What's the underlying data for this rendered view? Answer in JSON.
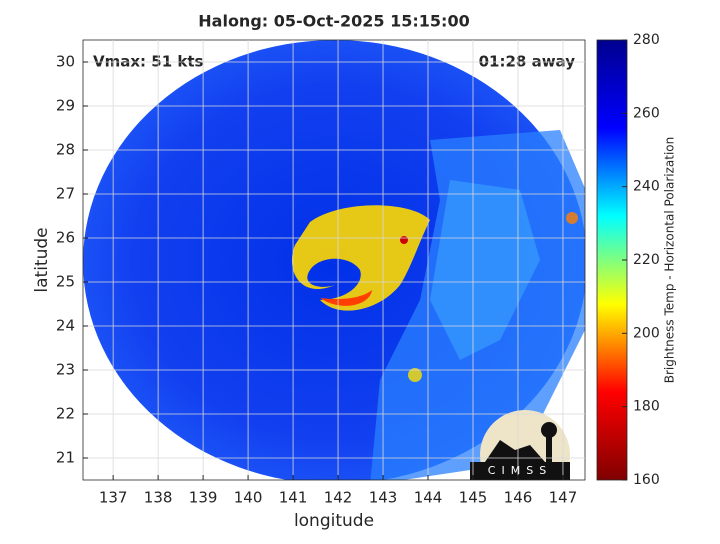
{
  "chart_data": {
    "type": "map",
    "title": "Halong: 05-Oct-2025 15:15:00",
    "annotations": {
      "left": "Vmax: 51 kts",
      "right": "01:28 away"
    },
    "x_label": "longitude",
    "y_label": "latitude",
    "xlim": [
      136.33,
      147.49
    ],
    "xticks": [
      137,
      138,
      139,
      140,
      141,
      142,
      143,
      144,
      145,
      146,
      147
    ],
    "ylim": [
      20.5,
      30.5
    ],
    "yticks": [
      21,
      22,
      23,
      24,
      25,
      26,
      27,
      28,
      29,
      30
    ],
    "grid": true,
    "colorbar": {
      "label": "Brightness Temp - Horizontal Polarization",
      "lim": [
        160,
        280
      ],
      "ticks": [
        160,
        180,
        200,
        220,
        240,
        260,
        280
      ],
      "colors": [
        "#800000",
        "#ff0000",
        "#ffff00",
        "#00ffff",
        "#0000ff",
        "#00008f"
      ]
    },
    "logo": "CIMSS"
  }
}
